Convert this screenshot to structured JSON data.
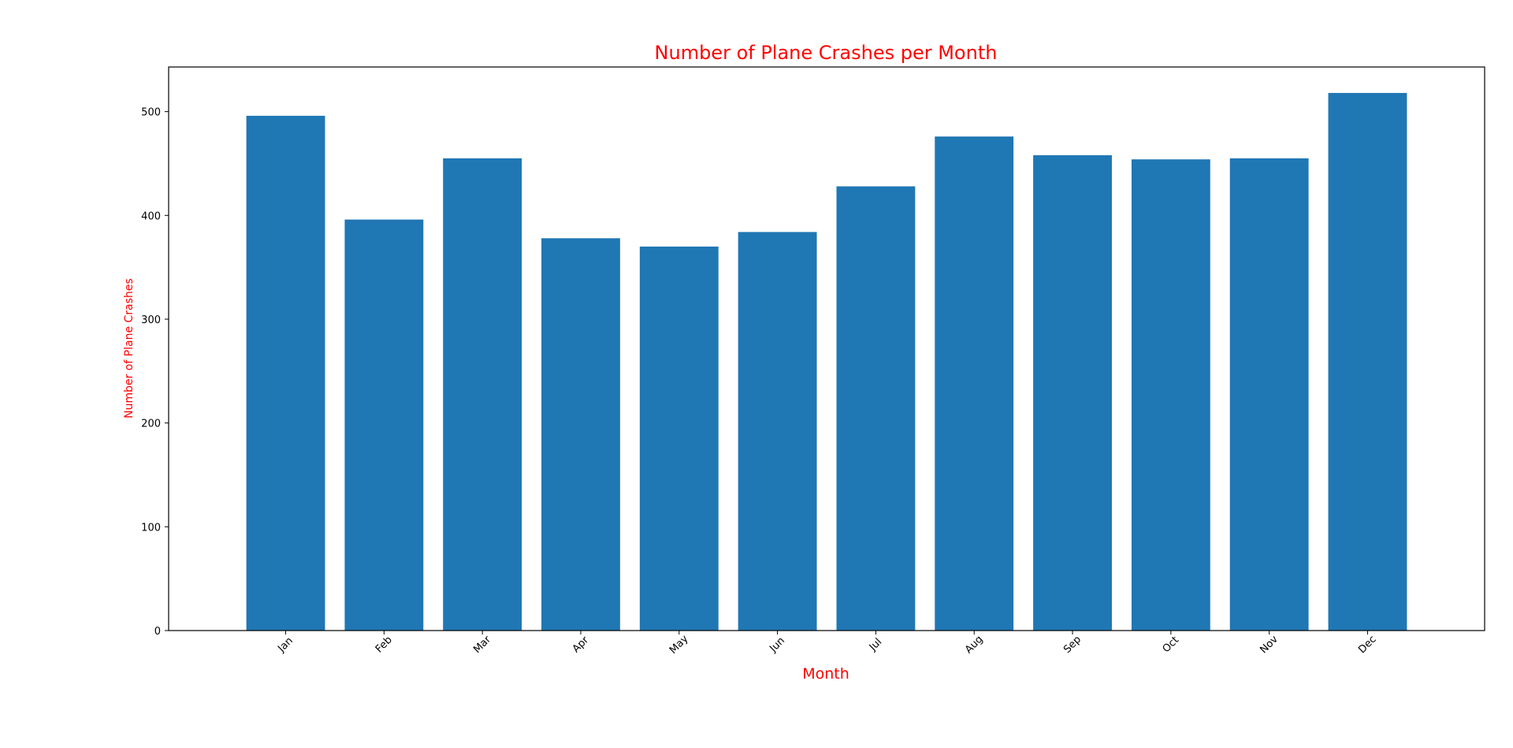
{
  "chart_data": {
    "type": "bar",
    "title": "Number of Plane Crashes per Month",
    "xlabel": "Month",
    "ylabel": "Number of Plane Crashes",
    "categories": [
      "Jan",
      "Feb",
      "Mar",
      "Apr",
      "May",
      "Jun",
      "Jul",
      "Aug",
      "Sep",
      "Oct",
      "Nov",
      "Dec"
    ],
    "values": [
      496,
      396,
      455,
      378,
      370,
      384,
      428,
      476,
      458,
      454,
      455,
      518
    ],
    "ylim": [
      0,
      543
    ],
    "yticks": [
      0,
      100,
      200,
      300,
      400,
      500
    ],
    "grid": false,
    "legend": "none",
    "colors": {
      "bar": "#1f77b4",
      "title": "#ff0000",
      "axis_labels": "#ff0000"
    }
  }
}
